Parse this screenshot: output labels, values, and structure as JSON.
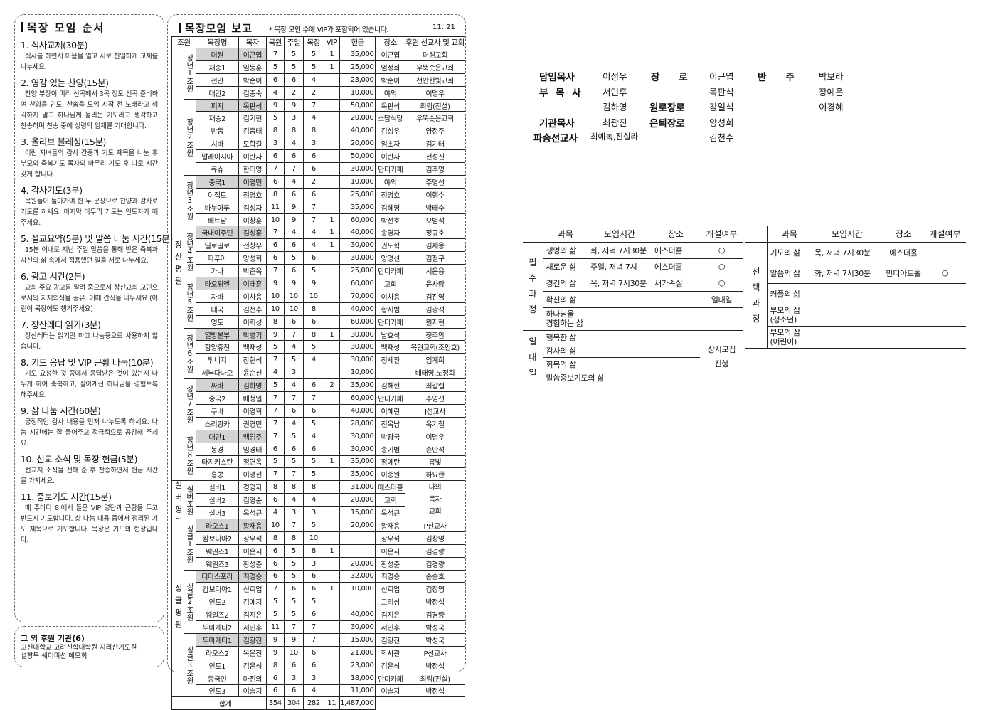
{
  "order": {
    "title": "목장 모임 순서",
    "sections": [
      {
        "title": "1. 식사교제(30분)",
        "body": "식사를 하면서 마음을 열고 서로 친밀하게 교제를 나누세요."
      },
      {
        "title": "2. 영감 있는 찬양(15분)",
        "body": "찬양 부장이 미리 선곡해서 3곡 정도 선곡 준비하여 찬양을 인도. 찬송을 모임 시작 전 노래라고 생각하지 말고 하나님께 올리는 기도라고 생각하고 찬송하며 찬송 중에 성령의 임재를 기대합니다."
      },
      {
        "title": "3. 올리브 블레싱(15분)",
        "body": "어린 자녀들의 감사 간증과 기도 제목을 나눈 후 부모의 축복기도 목자의 마무리 기도 후 따로 시간 갖게 합니다."
      },
      {
        "title": "4. 감사기도(3분)",
        "body": "목원들이 돌아가며 한 두 문장으로 찬양과 감사로 기도를 하세요. 마지막 마무리 기도는 인도자가 해주세요."
      },
      {
        "title": "5. 설교요약(5분) 및 말씀 나눔 시간(15분)",
        "body": "15분 이내로 지난 주일 말씀을 통해 받은 축복과 자신의 삶 속에서 적용했던 일을 서로 나누세요."
      },
      {
        "title": "6. 광고 시간(2분)",
        "body": "교회 주요 광고를 알려 줌으로서 장산교회 교인으로서의 지체의식을 공유. 이때 간식을 나누세요.(어린이 목장에도 챙겨주세요)"
      },
      {
        "title": "7. 장산레터 읽기(3분)",
        "body": "장산레터는 읽기만 하고 나눔용으로 사용하지 않습니다."
      },
      {
        "title": "8. 기도 응답 및 VIP 근황 나눔(10분)",
        "body": "기도 요청한 것 중에서 응답받은 것이 있는지 나누게 하여 축복하고, 살아계신 하나님을 경험토록 해주세요."
      },
      {
        "title": "9. 삶 나눔 시간(60분)",
        "body": "긍정적인 감사 내용을 먼저 나누도록 하세요. 나눔 시간에는 잘 들어주고 적극적으로 공감해 주세요."
      },
      {
        "title": "10. 선교 소식 및 목장 헌금(5분)",
        "body": "선교지 소식을 전해 준 후 찬송하면서 헌금 시간을 가지세요."
      },
      {
        "title": "11. 중보기도 시간(15분)",
        "body": "매 주마다 8.에서 들은 VIP 명단과 근황을 두고 반드시 기도합니다. 삶 나눔 내용 중에서 정리된 기도 제목으로 기도합니다. 목장은 기도의 현장입니다."
      }
    ]
  },
  "sponsor": {
    "title": "그 외 후원 기관(6)",
    "line1": "고신대학교 고려신학대학원 지리산기도원",
    "line2": "설향목 쉐어미션 예모회"
  },
  "report": {
    "title": "목장모임 보고",
    "note": "* 목장 모인 수에 VIP가 포함되어 있습니다.",
    "date": "11. 21",
    "headers": [
      "조원",
      "목장명",
      "목자",
      "목원",
      "주일",
      "목장",
      "VIP",
      "헌금",
      "장소",
      "후원 선교사 및 교회"
    ],
    "groups": [
      {
        "name": "장산평원",
        "subgroups": [
          {
            "label": "장년1조원",
            "rows": [
              [
                "더원",
                "이근엽",
                "7",
                "5",
                "5",
                "1",
                "35,000",
                "이근엽",
                "더원교회"
              ],
              [
                "재송1",
                "임동훈",
                "5",
                "5",
                "5",
                "1",
                "25,000",
                "엄정희",
                "우뚝솟은교회"
              ],
              [
                "천안",
                "박순이",
                "6",
                "6",
                "4",
                "",
                "23,000",
                "박순이",
                "천안한빛교회"
              ],
              [
                "대만2",
                "김종숙",
                "4",
                "2",
                "2",
                "",
                "10,000",
                "야외",
                "이명우"
              ]
            ]
          },
          {
            "label": "장년2조원",
            "rows": [
              [
                "피지",
                "옥판석",
                "9",
                "9",
                "7",
                "",
                "50,000",
                "옥판석",
                "최림(진설)"
              ],
              [
                "재송2",
                "김기현",
                "5",
                "3",
                "4",
                "",
                "20,000",
                "소담식당",
                "우뚝솟은교회"
              ],
              [
                "반둥",
                "김종태",
                "8",
                "8",
                "8",
                "",
                "40,000",
                "김성우",
                "양정주"
              ],
              [
                "치바",
                "도학길",
                "3",
                "4",
                "3",
                "",
                "20,000",
                "임초자",
                "김기태"
              ],
              [
                "말레이시아",
                "이란자",
                "6",
                "6",
                "6",
                "",
                "50,000",
                "이란자",
                "전성진"
              ],
              [
                "큐슈",
                "한미영",
                "7",
                "7",
                "6",
                "",
                "30,000",
                "만디카페",
                "김주영"
              ]
            ]
          },
          {
            "label": "장년3조원",
            "rows": [
              [
                "중국1",
                "이영민",
                "6",
                "4",
                "2",
                "",
                "10,000",
                "야외",
                "주영선"
              ],
              [
                "이집트",
                "정명호",
                "8",
                "6",
                "6",
                "",
                "25,000",
                "정명호",
                "이행수"
              ],
              [
                "바누아투",
                "김성자",
                "11",
                "9",
                "7",
                "",
                "35,000",
                "김혜영",
                "박태수"
              ],
              [
                "베트남",
                "이창훈",
                "10",
                "9",
                "7",
                "1",
                "60,000",
                "박선호",
                "오범석"
              ]
            ]
          },
          {
            "label": "장년4조원",
            "rows": [
              [
                "국내이주민",
                "김성훈",
                "7",
                "4",
                "4",
                "1",
                "40,000",
                "송영자",
                "정규호"
              ],
              [
                "일로일로",
                "전창우",
                "6",
                "6",
                "4",
                "1",
                "30,000",
                "권도혁",
                "김재용"
              ],
              [
                "파푸아",
                "양성희",
                "6",
                "5",
                "6",
                "",
                "30,000",
                "양명선",
                "김철구"
              ],
              [
                "가나",
                "박춘옥",
                "7",
                "6",
                "5",
                "",
                "25,000",
                "만디카페",
                "서운용"
              ]
            ]
          },
          {
            "label": "장년5조원",
            "rows": [
              [
                "타오위엔",
                "이태훈",
                "9",
                "9",
                "9",
                "",
                "60,000",
                "교회",
                "윤사랑"
              ],
              [
                "자바",
                "이차용",
                "10",
                "10",
                "10",
                "",
                "70,000",
                "이차용",
                "김진영"
              ],
              [
                "태국",
                "김천수",
                "10",
                "10",
                "8",
                "",
                "40,000",
                "황지범",
                "김광석"
              ],
              [
                "영도",
                "이희성",
                "8",
                "6",
                "6",
                "",
                "60,000",
                "만디카페",
                "원지현"
              ]
            ]
          },
          {
            "label": "장년6조원",
            "rows": [
              [
                "열방본부",
                "박병기",
                "9",
                "7",
                "8",
                "1",
                "30,000",
                "남효석",
                "정주안"
              ],
              [
                "함양휴천",
                "백재성",
                "5",
                "4",
                "5",
                "",
                "30,000",
                "백재성",
                "목현교회(조인호)"
              ],
              [
                "튀니지",
                "장현석",
                "7",
                "5",
                "4",
                "",
                "30,000",
                "정세환",
                "임계희"
              ],
              [
                "세부다나오",
                "윤순선",
                "4",
                "3",
                "",
                "",
                "10,000",
                "",
                "배태영,노정희"
              ]
            ]
          },
          {
            "label": "장년7조원",
            "rows": [
              [
                "싸바",
                "김하영",
                "5",
                "4",
                "6",
                "2",
                "35,000",
                "김해현",
                "최갈렙"
              ],
              [
                "중국2",
                "배청일",
                "7",
                "7",
                "7",
                "",
                "60,000",
                "만디카페",
                "주영선"
              ],
              [
                "쿠바",
                "이영희",
                "7",
                "6",
                "6",
                "",
                "40,000",
                "이혜린",
                "J선교사"
              ],
              [
                "스리랑카",
                "권영민",
                "7",
                "4",
                "5",
                "",
                "28,000",
                "전옥남",
                "옥기철"
              ]
            ]
          },
          {
            "label": "장년8조원",
            "rows": [
              [
                "대만1",
                "백임주",
                "7",
                "5",
                "4",
                "",
                "30,000",
                "박광국",
                "이명우"
              ],
              [
                "동경",
                "임경태",
                "6",
                "6",
                "6",
                "",
                "30,000",
                "송기범",
                "손만석"
              ],
              [
                "타지키스탄",
                "정연옥",
                "5",
                "5",
                "5",
                "1",
                "35,000",
                "정예란",
                "홍빛"
              ],
              [
                "홍콩",
                "이명선",
                "7",
                "7",
                "5",
                "",
                "35,000",
                "이종원",
                "하요한"
              ]
            ]
          }
        ]
      },
      {
        "name": "실버평원",
        "subgroups": [
          {
            "label": "실버조원",
            "support_merged": "나의\n목자\n교회",
            "noshade": true,
            "rows": [
              [
                "실버1",
                "경영자",
                "8",
                "8",
                "8",
                "",
                "31,000",
                "에스더홀",
                ""
              ],
              [
                "실버2",
                "김영순",
                "6",
                "4",
                "4",
                "",
                "20,000",
                "교회",
                ""
              ],
              [
                "실버3",
                "옥석근",
                "4",
                "3",
                "3",
                "",
                "15,000",
                "옥석근",
                ""
              ]
            ]
          }
        ]
      },
      {
        "name": "싱글평원",
        "subgroups": [
          {
            "label": "싱글1조원",
            "rows": [
              [
                "라오스1",
                "황재용",
                "10",
                "7",
                "5",
                "",
                "20,000",
                "황재용",
                "P선교사"
              ],
              [
                "캄보디아2",
                "장우석",
                "8",
                "8",
                "10",
                "",
                "",
                "장우석",
                "김창영"
              ],
              [
                "웨일즈1",
                "이은지",
                "6",
                "5",
                "8",
                "1",
                "",
                "이은지",
                "김경량"
              ],
              [
                "웨일즈3",
                "황성준",
                "6",
                "5",
                "3",
                "",
                "20,000",
                "황성준",
                "김경량"
              ]
            ]
          },
          {
            "label": "싱글2조원",
            "rows": [
              [
                "디아스포라",
                "최경승",
                "6",
                "5",
                "6",
                "",
                "32,000",
                "최경승",
                "손승호"
              ],
              [
                "캄보디아1",
                "신희업",
                "7",
                "6",
                "6",
                "1",
                "10,000",
                "신희업",
                "김창영"
              ],
              [
                "인도2",
                "김예지",
                "5",
                "5",
                "5",
                "",
                "",
                "그리심",
                "박정섭"
              ],
              [
                "웨일즈2",
                "김지은",
                "5",
                "5",
                "6",
                "",
                "40,000",
                "김지은",
                "김경량"
              ],
              [
                "두마게티2",
                "서민후",
                "11",
                "7",
                "7",
                "",
                "30,000",
                "서민후",
                "박성국"
              ]
            ]
          },
          {
            "label": "싱글3조원",
            "rows": [
              [
                "두마게티1",
                "김광진",
                "9",
                "9",
                "7",
                "",
                "15,000",
                "김광진",
                "박성국"
              ],
              [
                "라오스2",
                "옥은진",
                "9",
                "10",
                "6",
                "",
                "21,000",
                "학사관",
                "P선교사"
              ],
              [
                "인도1",
                "김은식",
                "8",
                "6",
                "6",
                "",
                "23,000",
                "김은식",
                "박정섭"
              ],
              [
                "중국인",
                "마진의",
                "6",
                "3",
                "3",
                "",
                "18,000",
                "만디카페",
                "최림(진설)"
              ],
              [
                "인도3",
                "이솔지",
                "6",
                "6",
                "4",
                "",
                "11,000",
                "이솔지",
                "박정섭"
              ]
            ]
          }
        ]
      }
    ],
    "total": {
      "label": "합계",
      "members": "354",
      "sunday": "304",
      "meeting": "282",
      "vip": "11",
      "offering": "1,487,000"
    }
  },
  "staff": {
    "senior_pastor_label": "담임목사",
    "senior_pastor": "이정우",
    "associate_label": "부 목 사",
    "associates": [
      "서민후",
      "김하영"
    ],
    "institution_label": "기관목사",
    "institution": "최광진",
    "missionary_label": "파송선교사",
    "missionary": "최예녹,진실라",
    "elder_label": "장　　로",
    "elders": [
      "이근엽",
      "옥판석"
    ],
    "emeritus_label": "원로장로",
    "emeritus": "강일석",
    "retired_label": "은퇴장로",
    "retired": [
      "양성희",
      "김천수"
    ],
    "conductor_label": "반　　주",
    "conductors": [
      "박보라",
      "장예은",
      "이경혜"
    ]
  },
  "courses": {
    "headers": [
      "과목",
      "모임시간",
      "장소",
      "개설여부"
    ],
    "required_label": "필\n수\n과\n정",
    "required": [
      {
        "name": "생명의 삶",
        "time": "화, 저녁 7시30분",
        "place": "에스더홀",
        "open": "○"
      },
      {
        "name": "새로운 삶",
        "time": "주일, 저녁 7시",
        "place": "에스더홀",
        "open": "○"
      },
      {
        "name": "경건의 삶",
        "time": "목, 저녁 7시30분",
        "place": "새가족실",
        "open": "○"
      },
      {
        "name": "확신의 삶",
        "time": "",
        "place": "",
        "open": "일대일"
      },
      {
        "name": "하나님을\n경험하는 삶",
        "time": "",
        "place": "",
        "open": ""
      }
    ],
    "one_on_one_label": "일\n대\n일",
    "one_on_one": [
      {
        "name": "행복한 삶"
      },
      {
        "name": "감사의 삶"
      },
      {
        "name": "회복의 삶"
      },
      {
        "name": "말씀중보기도의 삶"
      }
    ],
    "one_on_one_status": "상시모집\n진행",
    "elective_label": "선\n택\n과\n정",
    "elective": [
      {
        "name": "기도의 삶",
        "time": "목, 저녁 7시30분",
        "place": "에스더홀",
        "open": ""
      },
      {
        "name": "말씀의 삶",
        "time": "화, 저녁 7시30분",
        "place": "만디아트홀",
        "open": "○"
      },
      {
        "name": "커플의 삶",
        "time": "",
        "place": "",
        "open": ""
      },
      {
        "name": "부모의 삶\n(청소년)",
        "time": "",
        "place": "",
        "open": ""
      },
      {
        "name": "부모의 삶\n(어린이)",
        "time": "",
        "place": "",
        "open": ""
      }
    ]
  }
}
